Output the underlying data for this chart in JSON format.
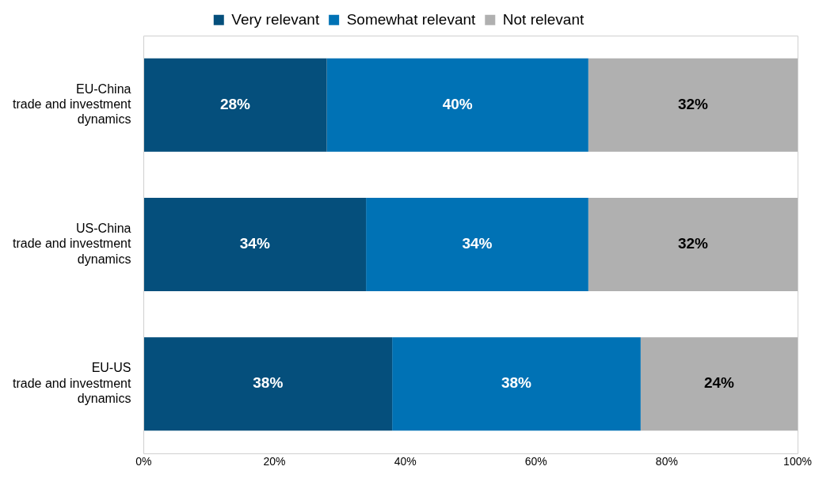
{
  "chart_data": {
    "type": "bar",
    "orientation": "horizontal",
    "stacked": true,
    "categories": [
      "EU-China\ntrade and investment\ndynamics",
      "US-China\ntrade and investment\ndynamics",
      "EU-US\ntrade and investment\ndynamics"
    ],
    "series": [
      {
        "name": "Very relevant",
        "color": "#054f7c",
        "values": [
          28,
          34,
          38
        ],
        "value_labels": [
          "28%",
          "34%",
          "38%"
        ]
      },
      {
        "name": "Somewhat relevant",
        "color": "#0072b5",
        "values": [
          40,
          34,
          38
        ],
        "value_labels": [
          "40%",
          "34%",
          "38%"
        ]
      },
      {
        "name": "Not relevant",
        "color": "#b0b0b0",
        "values": [
          32,
          32,
          24
        ],
        "value_labels": [
          "32%",
          "32%",
          "24%"
        ]
      }
    ],
    "xlim": [
      0,
      100
    ],
    "xticks": [
      {
        "value": 0,
        "label": "0%"
      },
      {
        "value": 20,
        "label": "20%"
      },
      {
        "value": 40,
        "label": "40%"
      },
      {
        "value": 60,
        "label": "60%"
      },
      {
        "value": 80,
        "label": "80%"
      },
      {
        "value": 100,
        "label": "100%"
      }
    ],
    "grid": false,
    "legend": "top"
  }
}
